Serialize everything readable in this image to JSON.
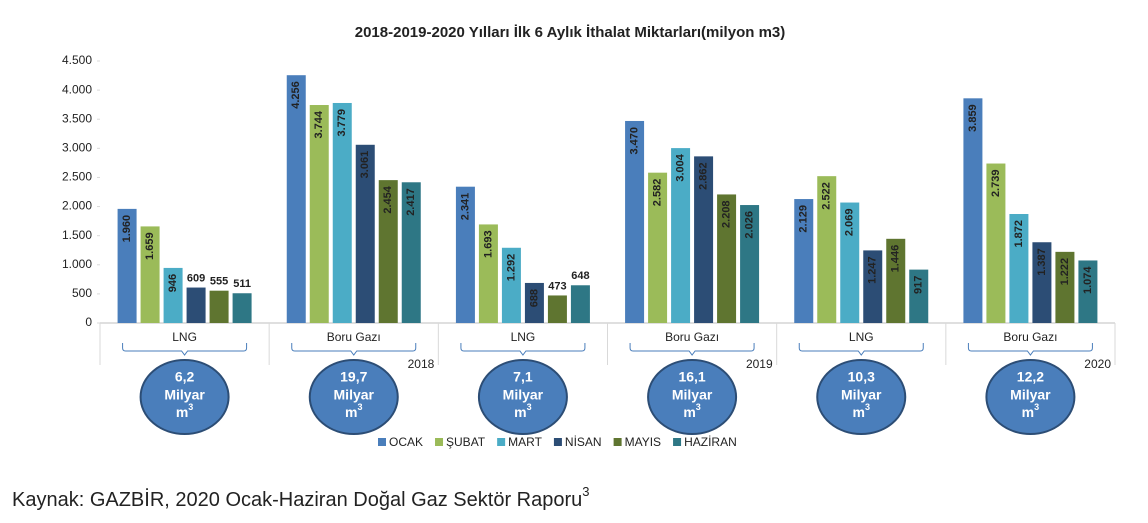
{
  "chart_data": {
    "type": "bar",
    "title": "2018-2019-2020 Yılları İlk 6 Aylık İthalat Miktarları(milyon m3)",
    "categories": [
      "LNG",
      "Boru Gazı",
      "LNG",
      "Boru Gazı",
      "LNG",
      "Boru Gazı"
    ],
    "years": [
      "2018",
      "2019",
      "2020"
    ],
    "series": [
      {
        "name": "OCAK",
        "color": "#4a7ebb",
        "values": [
          1960,
          4256,
          2341,
          3470,
          2129,
          3859
        ],
        "value_labels": [
          "1.960",
          "4.256",
          "2.341",
          "3.470",
          "2.129",
          "3.859"
        ]
      },
      {
        "name": "ŞUBAT",
        "color": "#9bbb59",
        "values": [
          1659,
          3744,
          1693,
          2582,
          2522,
          2739
        ],
        "value_labels": [
          "1.659",
          "3.744",
          "1.693",
          "2.582",
          "2.522",
          "2.739"
        ]
      },
      {
        "name": "MART",
        "color": "#4bacc6",
        "values": [
          946,
          3779,
          1292,
          3004,
          2069,
          1872
        ],
        "value_labels": [
          "946",
          "3.779",
          "1.292",
          "3.004",
          "2.069",
          "1.872"
        ]
      },
      {
        "name": "NİSAN",
        "color": "#2c4d75",
        "values": [
          609,
          3061,
          688,
          2862,
          1247,
          1387
        ],
        "value_labels": [
          "609",
          "3.061",
          "688",
          "2.862",
          "1.247",
          "1.387"
        ]
      },
      {
        "name": "MAYIS",
        "color": "#5f7530",
        "values": [
          555,
          2454,
          473,
          2208,
          1446,
          1222
        ],
        "value_labels": [
          "555",
          "2.454",
          "473",
          "2.208",
          "1.446",
          "1.222"
        ]
      },
      {
        "name": "HAZİRAN",
        "color": "#2e7785",
        "values": [
          511,
          2417,
          648,
          2026,
          917,
          1074
        ],
        "value_labels": [
          "511",
          "2.417",
          "648",
          "2.026",
          "917",
          "1.074"
        ]
      }
    ],
    "totals": [
      {
        "value": 6.2,
        "label": "6,2"
      },
      {
        "value": 19.7,
        "label": "19,7"
      },
      {
        "value": 7.1,
        "label": "7,1"
      },
      {
        "value": 16.1,
        "label": "16,1"
      },
      {
        "value": 10.3,
        "label": "10,3"
      },
      {
        "value": 12.2,
        "label": "12,2"
      }
    ],
    "total_unit": "Milyar",
    "total_unit2": "m",
    "total_unit_sup": "3",
    "ylim": [
      0,
      4500
    ],
    "yticks": [
      0,
      500,
      {
        "value": 1000,
        "label": "1.000"
      },
      {
        "value": 1500,
        "label": "1.500"
      },
      {
        "value": 2000,
        "label": "2.000"
      },
      {
        "value": 2500,
        "label": "2.500"
      },
      {
        "value": 3000,
        "label": "3.000"
      },
      {
        "value": 3500,
        "label": "3.500"
      },
      {
        "value": 4000,
        "label": "4.000"
      },
      {
        "value": 4500,
        "label": "4.500"
      }
    ],
    "grid": false,
    "legend": "bottom"
  },
  "source": "Kaynak: GAZBİR, 2020 Ocak-Haziran Doğal Gaz Sektör Raporu",
  "source_sup": "3"
}
